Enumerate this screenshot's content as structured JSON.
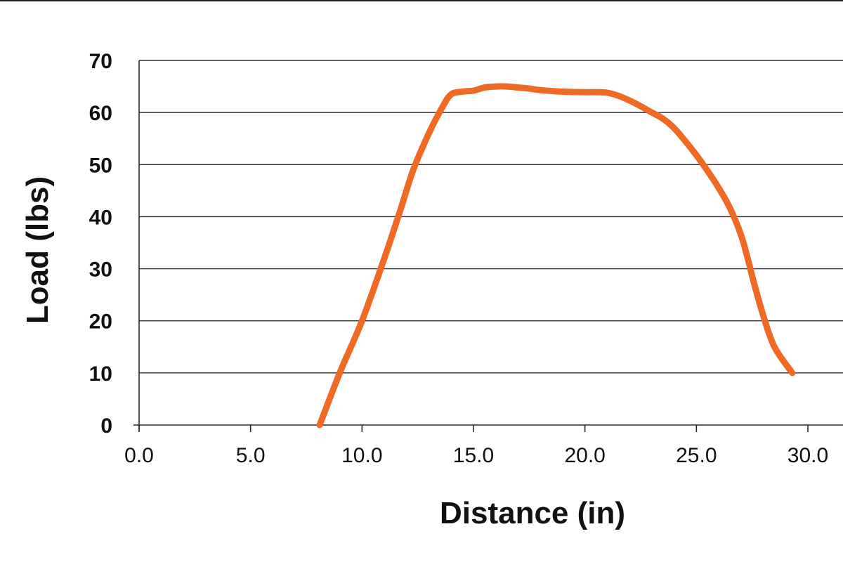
{
  "chart_data": {
    "type": "line",
    "title": "",
    "xlabel": "Distance (in)",
    "ylabel": "Load (lbs)",
    "xlim": [
      0,
      30
    ],
    "ylim": [
      0,
      70
    ],
    "x_ticks": [
      "0.0",
      "5.0",
      "10.0",
      "15.0",
      "20.0",
      "25.0",
      "30.0"
    ],
    "y_ticks": [
      "0",
      "10",
      "20",
      "30",
      "40",
      "50",
      "60",
      "70"
    ],
    "grid": "horizontal",
    "legend": "none",
    "series": [
      {
        "color": "#ef6a24",
        "x": [
          8.1,
          9.0,
          10.0,
          11.0,
          11.7,
          12.3,
          13.0,
          13.6,
          14.0,
          14.5,
          15.0,
          15.5,
          16.0,
          16.5,
          17.0,
          17.5,
          18.0,
          19.0,
          20.0,
          20.5,
          21.0,
          21.5,
          22.0,
          22.5,
          23.0,
          23.5,
          24.0,
          24.5,
          25.0,
          25.5,
          26.0,
          26.5,
          27.0,
          27.3,
          27.6,
          28.0,
          28.5,
          29.3
        ],
        "y": [
          0,
          10,
          20,
          32,
          41,
          49,
          56,
          61,
          63.5,
          64,
          64.2,
          64.8,
          65.0,
          65.0,
          64.8,
          64.6,
          64.3,
          64.0,
          63.9,
          63.9,
          63.8,
          63.2,
          62.3,
          61.2,
          60.0,
          58.8,
          57.0,
          54.5,
          51.8,
          48.8,
          45.5,
          41.7,
          36.5,
          32.0,
          27.0,
          21.0,
          15.0,
          10.0
        ]
      }
    ]
  }
}
